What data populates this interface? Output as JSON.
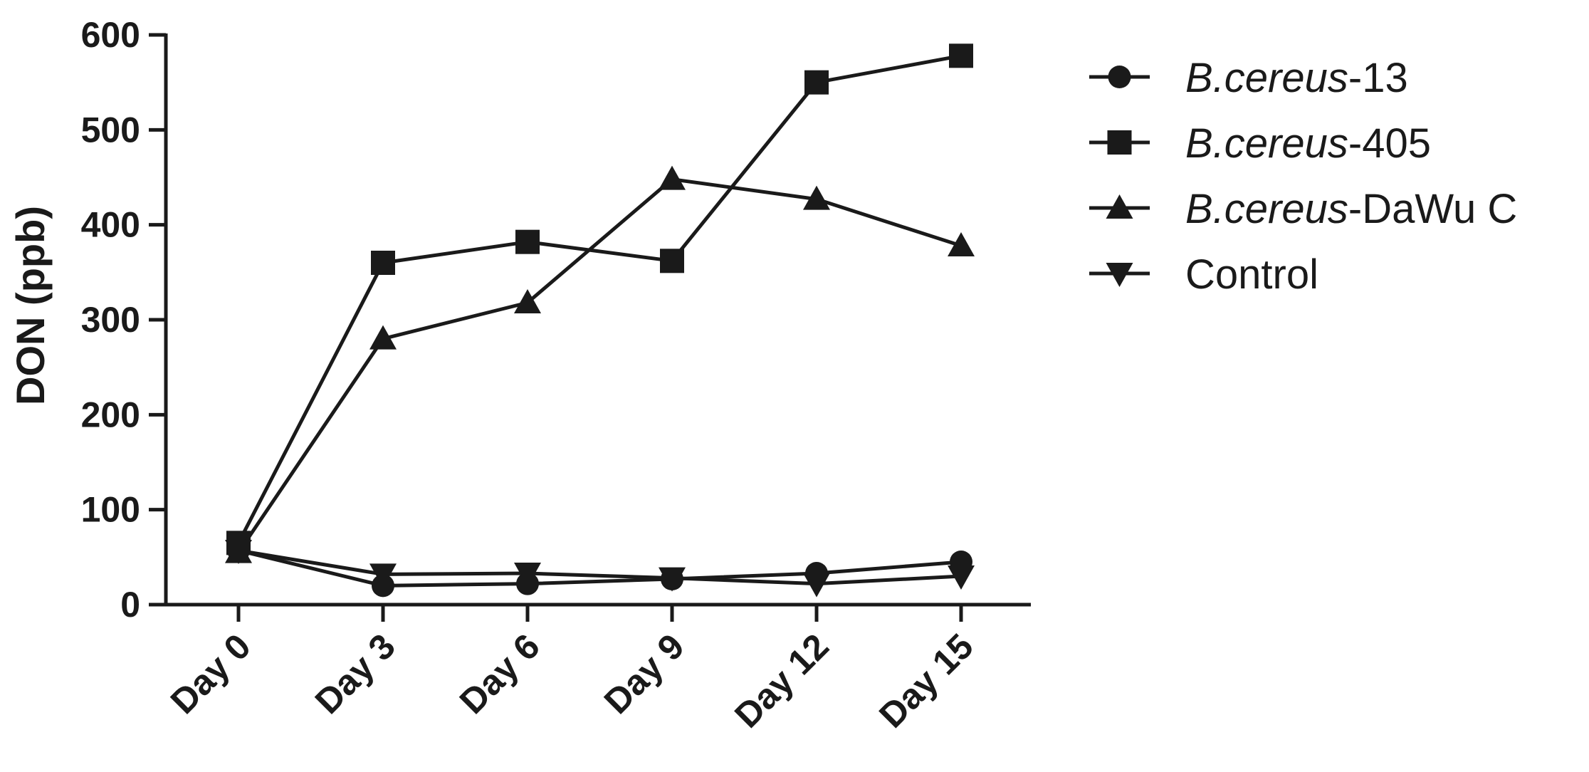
{
  "chart_data": {
    "type": "line",
    "categories": [
      "Day 0",
      "Day 3",
      "Day 6",
      "Day 9",
      "Day 12",
      "Day 15"
    ],
    "ylabel": "DON (ppb)",
    "xlabel": "",
    "ylim": [
      0,
      600
    ],
    "yticks": [
      0,
      100,
      200,
      300,
      400,
      500,
      600
    ],
    "grid": false,
    "legend_position": "right",
    "series": [
      {
        "name_italic": "B.cereus",
        "name_suffix": "-13",
        "marker": "circle",
        "values": [
          57,
          20,
          22,
          27,
          33,
          45
        ]
      },
      {
        "name_italic": "B.cereus",
        "name_suffix": "-405",
        "marker": "square",
        "values": [
          65,
          360,
          382,
          362,
          550,
          578
        ]
      },
      {
        "name_italic": "B.cereus",
        "name_suffix": "-DaWu C",
        "marker": "triangle-up",
        "values": [
          55,
          280,
          318,
          448,
          427,
          378
        ]
      },
      {
        "name_italic": "",
        "name_suffix": "Control",
        "marker": "triangle-down",
        "values": [
          57,
          32,
          33,
          28,
          22,
          30
        ]
      }
    ],
    "color": "#1a1a1a"
  }
}
